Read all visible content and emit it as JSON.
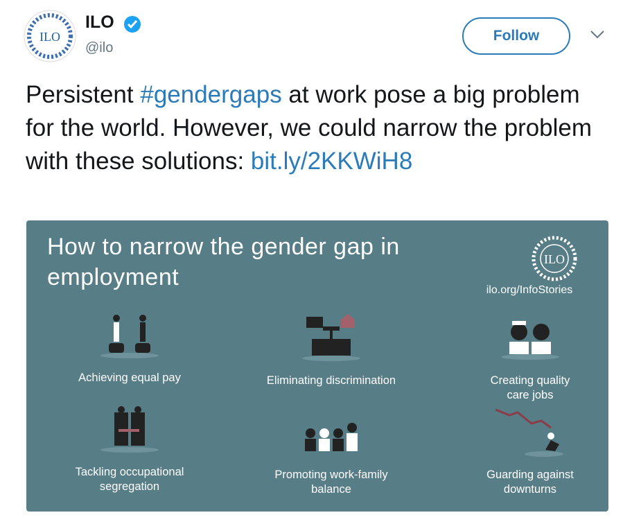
{
  "account": {
    "name": "ILO",
    "handle": "@ilo",
    "logo_text": "ILO"
  },
  "follow_button": "Follow",
  "tweet": {
    "segments": [
      {
        "text": "Persistent ",
        "kind": "plain"
      },
      {
        "text": "#gendergaps",
        "kind": "hashtag"
      },
      {
        "text": " at work pose a big problem for the world. However, we could narrow the problem with these solutions: ",
        "kind": "plain"
      },
      {
        "text": "bit.ly/2KKWiH8",
        "kind": "link"
      }
    ]
  },
  "image": {
    "title": "How to narrow the gender gap in employment",
    "site": "ilo.org/InfoStories",
    "items": [
      "Achieving equal pay",
      "Eliminating discrimination",
      "Creating quality care jobs",
      "Tackling occupational segregation",
      "Promoting work-family balance",
      "Guarding against downturns"
    ]
  }
}
